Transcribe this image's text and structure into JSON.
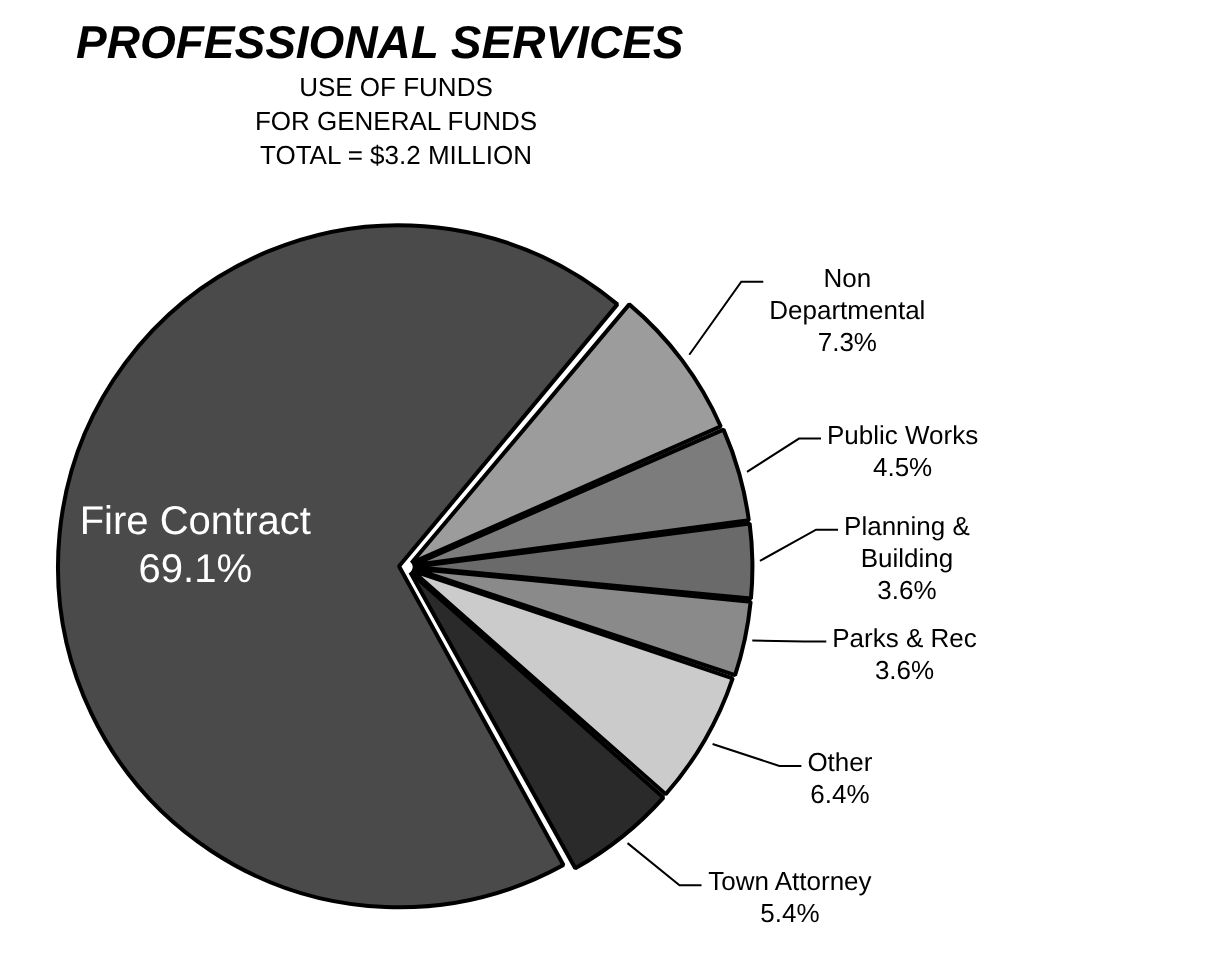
{
  "chart_data": {
    "type": "pie",
    "title": "PROFESSIONAL SERVICES",
    "subtitle": "USE OF FUNDS\nFOR GENERAL FUNDS\nTOTAL = $3.2 MILLION",
    "categories": [
      "Non Departmental",
      "Public Works",
      "Planning & Building",
      "Parks & Rec",
      "Other",
      "Town Attorney",
      "Fire Contract"
    ],
    "values": [
      7.3,
      4.5,
      3.6,
      3.6,
      6.4,
      5.4,
      69.1
    ],
    "value_labels": [
      "7.3%",
      "4.5%",
      "3.6%",
      "3.6%",
      "6.4%",
      "5.4%",
      "69.1%"
    ],
    "colors": [
      "#9c9c9c",
      "#7c7c7c",
      "#6a6a6a",
      "#8a8a8a",
      "#cbcbcb",
      "#2a2a2a",
      "#4a4a4a"
    ],
    "legend": false
  }
}
